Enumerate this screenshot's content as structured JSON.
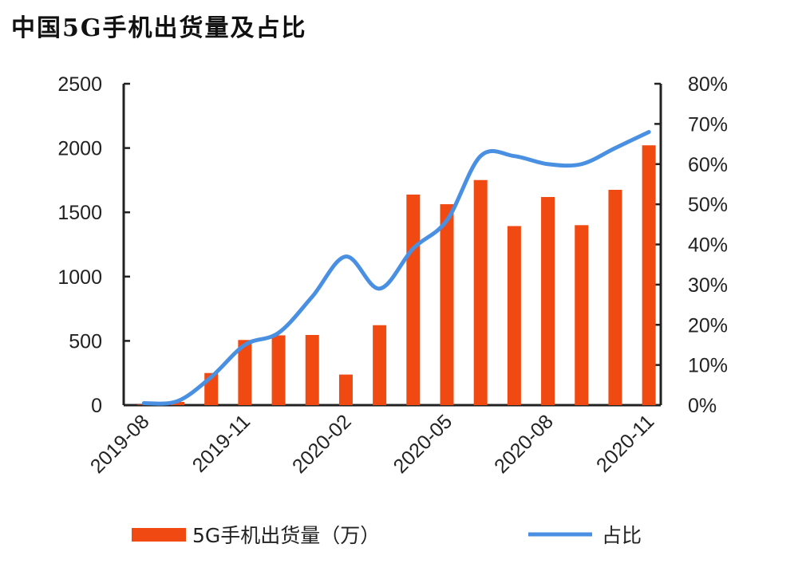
{
  "chart_data": {
    "type": "bar+line",
    "title": "中国5G手机出货量及占比",
    "categories": [
      "2019-08",
      "2019-09",
      "2019-10",
      "2019-11",
      "2019-12",
      "2020-01",
      "2020-02",
      "2020-03",
      "2020-04",
      "2020-05",
      "2020-06",
      "2020-07",
      "2020-08",
      "2020-09",
      "2020-10",
      "2020-11"
    ],
    "x_tick_labels": [
      "2019-08",
      "2019-11",
      "2020-02",
      "2020-05",
      "2020-08",
      "2020-11"
    ],
    "series": [
      {
        "name": "5G手机出货量（万）",
        "type": "bar",
        "axis": "left",
        "color": "#f04a12",
        "values": [
          4,
          25,
          250,
          507,
          543,
          546,
          238,
          622,
          1638,
          1563,
          1751,
          1393,
          1619,
          1400,
          1675,
          2021
        ]
      },
      {
        "name": "占比",
        "type": "line",
        "axis": "right",
        "color": "#4a90e2",
        "values": [
          0.5,
          1,
          7,
          15,
          18,
          27,
          37,
          29,
          39,
          46,
          62,
          62,
          60,
          60,
          64,
          68
        ]
      }
    ],
    "left_axis": {
      "ylim": [
        0,
        2500
      ],
      "ticks": [
        "0",
        "500",
        "1000",
        "1500",
        "2000",
        "2500"
      ]
    },
    "right_axis": {
      "ylim": [
        0,
        80
      ],
      "ticks": [
        "0%",
        "10%",
        "20%",
        "30%",
        "40%",
        "50%",
        "60%",
        "70%",
        "80%"
      ]
    },
    "legend": {
      "position": "bottom",
      "items": [
        "5G手机出货量（万）",
        "占比"
      ]
    }
  }
}
